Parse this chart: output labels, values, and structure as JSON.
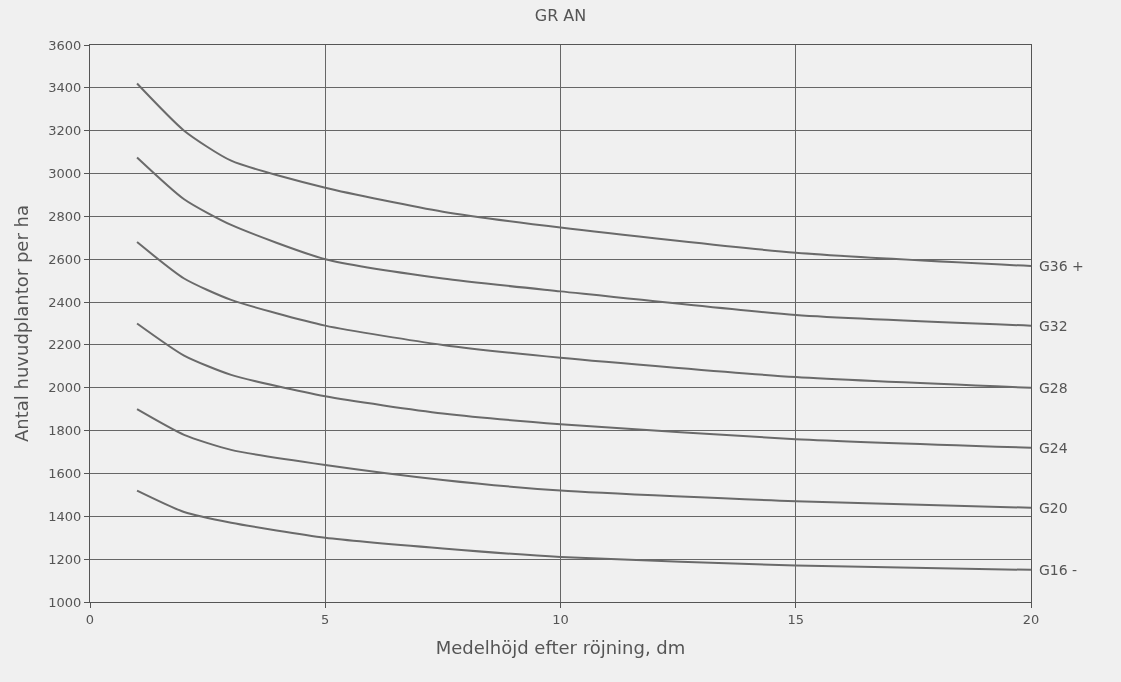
{
  "chart_data": {
    "type": "line",
    "title": "GR AN",
    "xlabel": "Medelhöjd efter röjning, dm",
    "ylabel": "Antal huvudplantor per ha",
    "x": [
      1,
      2,
      3,
      5,
      7.5,
      10,
      15,
      20
    ],
    "series": [
      {
        "name": "G36 +",
        "color": "#6a6a6a",
        "values": [
          3420,
          3200,
          3060,
          2934,
          2822,
          2748,
          2630,
          2568
        ]
      },
      {
        "name": "G32",
        "color": "#6a6a6a",
        "values": [
          3075,
          2880,
          2760,
          2600,
          2510,
          2450,
          2340,
          2290
        ]
      },
      {
        "name": "G28",
        "color": "#6a6a6a",
        "values": [
          2680,
          2510,
          2410,
          2290,
          2200,
          2140,
          2050,
          2000
        ]
      },
      {
        "name": "G24",
        "color": "#6a6a6a",
        "values": [
          2300,
          2150,
          2060,
          1960,
          1880,
          1830,
          1760,
          1720
        ]
      },
      {
        "name": "G20",
        "color": "#6a6a6a",
        "values": [
          1900,
          1780,
          1710,
          1640,
          1570,
          1520,
          1470,
          1440
        ]
      },
      {
        "name": "G16 -",
        "color": "#6a6a6a",
        "values": [
          1520,
          1420,
          1370,
          1300,
          1250,
          1210,
          1170,
          1150
        ]
      }
    ],
    "xlim": [
      0,
      20
    ],
    "xticks": [
      0,
      5,
      10,
      15,
      20
    ],
    "ylim": [
      1000,
      3600
    ],
    "yticks": [
      1000,
      1200,
      1400,
      1600,
      1800,
      2000,
      2200,
      2400,
      2600,
      2800,
      3000,
      3200,
      3400,
      3600
    ],
    "grid": true,
    "legend": false,
    "marker": "none",
    "line_style": "solid"
  }
}
